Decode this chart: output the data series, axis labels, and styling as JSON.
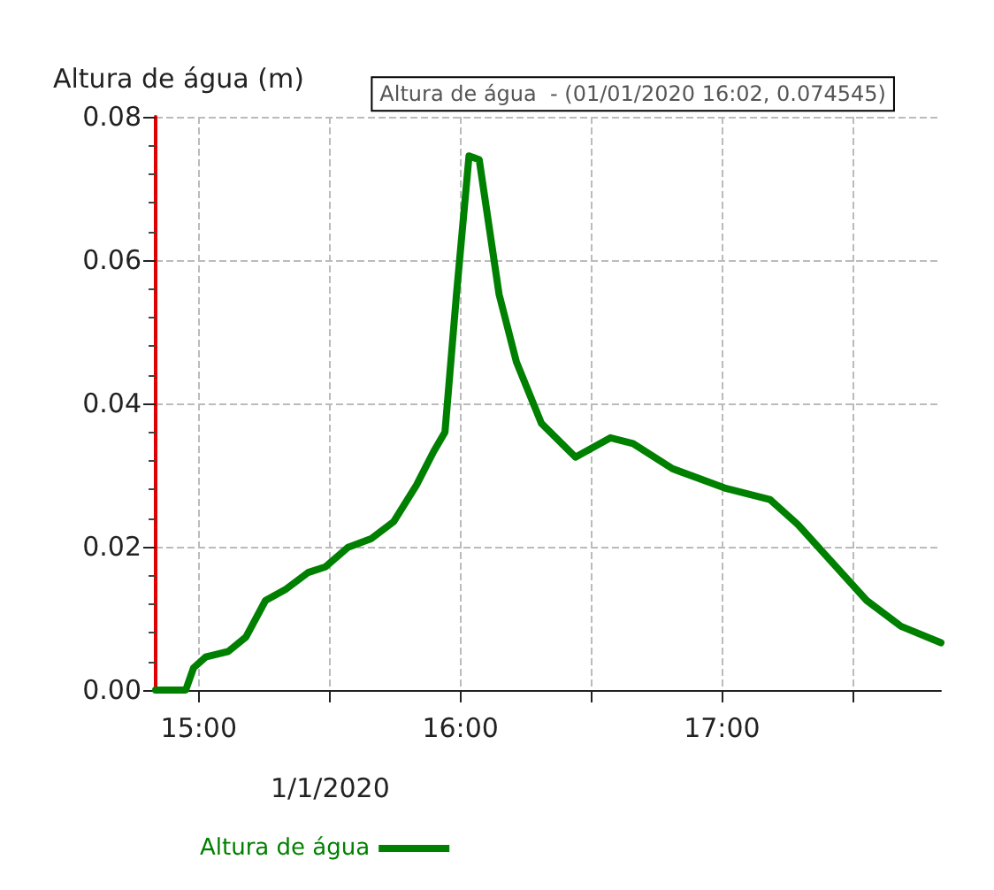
{
  "chart_data": {
    "type": "line",
    "ylabel": "Altura de água (m)",
    "xlabel": "1/1/2020",
    "x": [
      14.835,
      14.95,
      14.98,
      15.026,
      15.113,
      15.18,
      15.255,
      15.33,
      15.418,
      15.484,
      15.57,
      15.658,
      15.745,
      15.832,
      15.898,
      15.941,
      15.985,
      16.033,
      16.072,
      16.148,
      16.214,
      16.31,
      16.44,
      16.573,
      16.66,
      16.81,
      17.01,
      17.183,
      17.29,
      17.553,
      17.684,
      17.837
    ],
    "series": [
      {
        "name": "Altura de água",
        "color": "#008000",
        "values": [
          0,
          0,
          0.0031,
          0.0046,
          0.0054,
          0.0074,
          0.0125,
          0.014,
          0.0164,
          0.0172,
          0.0199,
          0.0211,
          0.0235,
          0.0286,
          0.0333,
          0.036,
          0.0552,
          0.074545,
          0.074,
          0.0552,
          0.0458,
          0.0372,
          0.0325,
          0.0352,
          0.0344,
          0.0309,
          0.0282,
          0.0266,
          0.0231,
          0.0125,
          0.0089,
          0.0066
        ]
      }
    ],
    "xlim": [
      14.835,
      17.837
    ],
    "xticks": [
      {
        "value": 15,
        "label": "15:00"
      },
      {
        "value": 15.5,
        "label": null
      },
      {
        "value": 16,
        "label": "16:00"
      },
      {
        "value": 16.5,
        "label": null
      },
      {
        "value": 17,
        "label": "17:00"
      },
      {
        "value": 17.5,
        "label": null
      }
    ],
    "ylim": [
      0,
      0.08
    ],
    "yticks": [
      {
        "value": 0,
        "label": "0.00"
      },
      {
        "value": 0.02,
        "label": "0.02"
      },
      {
        "value": 0.04,
        "label": "0.04"
      },
      {
        "value": 0.06,
        "label": "0.06"
      },
      {
        "value": 0.08,
        "label": "0.08"
      }
    ],
    "grid": true,
    "legend": "bottom",
    "marker": "none",
    "line_style": "solid",
    "annotations": [
      {
        "text": "Altura de água  - (01/01/2020 16:02, 0.074545)",
        "x": 16.033,
        "y": 0.074545
      }
    ]
  }
}
